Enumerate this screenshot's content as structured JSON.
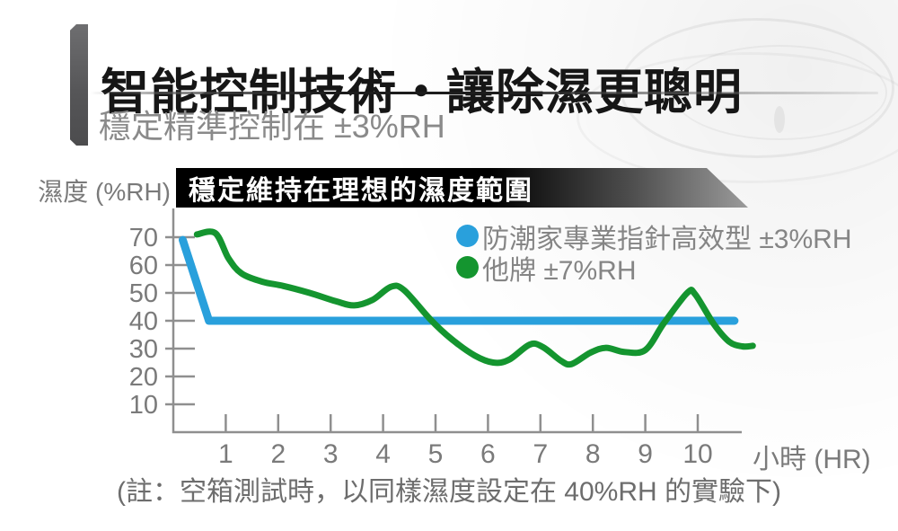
{
  "header": {
    "title": "智能控制技術・讓除濕更聰明",
    "subtitle": "穩定精準控制在 ±3%RH"
  },
  "colors": {
    "brand_blue": "#29A0DC",
    "other_green": "#14952F",
    "banner_black": "#000000",
    "axis_gray": "#8f8f8f"
  },
  "chart_data": {
    "type": "line",
    "title": "穩定維持在理想的濕度範圍",
    "xlabel": "小時 (HR)",
    "ylabel": "濕度 (%RH)",
    "note": "(註：空箱測試時，以同樣濕度設定在 40%RH 的實驗下)",
    "x_ticks": [
      1,
      2,
      3,
      4,
      5,
      6,
      7,
      8,
      9,
      10
    ],
    "y_ticks": [
      70,
      60,
      50,
      40,
      30,
      20,
      10
    ],
    "xlim": [
      0,
      11.1
    ],
    "ylim": [
      0,
      75
    ],
    "grid": false,
    "legend_position": "top-right",
    "series": [
      {
        "name": "防潮家專業指針高效型 ±3%RH",
        "color": "#29A0DC",
        "width": 9,
        "smooth": false,
        "points": [
          [
            0.18,
            69
          ],
          [
            0.68,
            40
          ],
          [
            10.7,
            40
          ]
        ]
      },
      {
        "name": "他牌 ±7%RH",
        "color": "#14952F",
        "width": 7,
        "smooth": true,
        "points": [
          [
            0.45,
            71
          ],
          [
            0.8,
            71.5
          ],
          [
            1.05,
            62.5
          ],
          [
            1.3,
            57
          ],
          [
            1.7,
            54
          ],
          [
            2.1,
            52.5
          ],
          [
            2.6,
            50
          ],
          [
            3.1,
            47
          ],
          [
            3.45,
            45.5
          ],
          [
            3.8,
            47.5
          ],
          [
            4.15,
            52.2
          ],
          [
            4.4,
            51
          ],
          [
            4.9,
            40.5
          ],
          [
            5.3,
            33.5
          ],
          [
            5.75,
            27.5
          ],
          [
            6.1,
            25
          ],
          [
            6.4,
            26
          ],
          [
            6.8,
            31.5
          ],
          [
            7.05,
            30.5
          ],
          [
            7.4,
            25.5
          ],
          [
            7.6,
            24.5
          ],
          [
            7.95,
            28.5
          ],
          [
            8.25,
            30.3
          ],
          [
            8.6,
            28.8
          ],
          [
            9.0,
            29.5
          ],
          [
            9.35,
            39
          ],
          [
            9.8,
            50
          ],
          [
            9.95,
            49.5
          ],
          [
            10.3,
            39
          ],
          [
            10.6,
            32.5
          ],
          [
            10.85,
            30.8
          ],
          [
            11.05,
            31
          ]
        ]
      }
    ]
  }
}
